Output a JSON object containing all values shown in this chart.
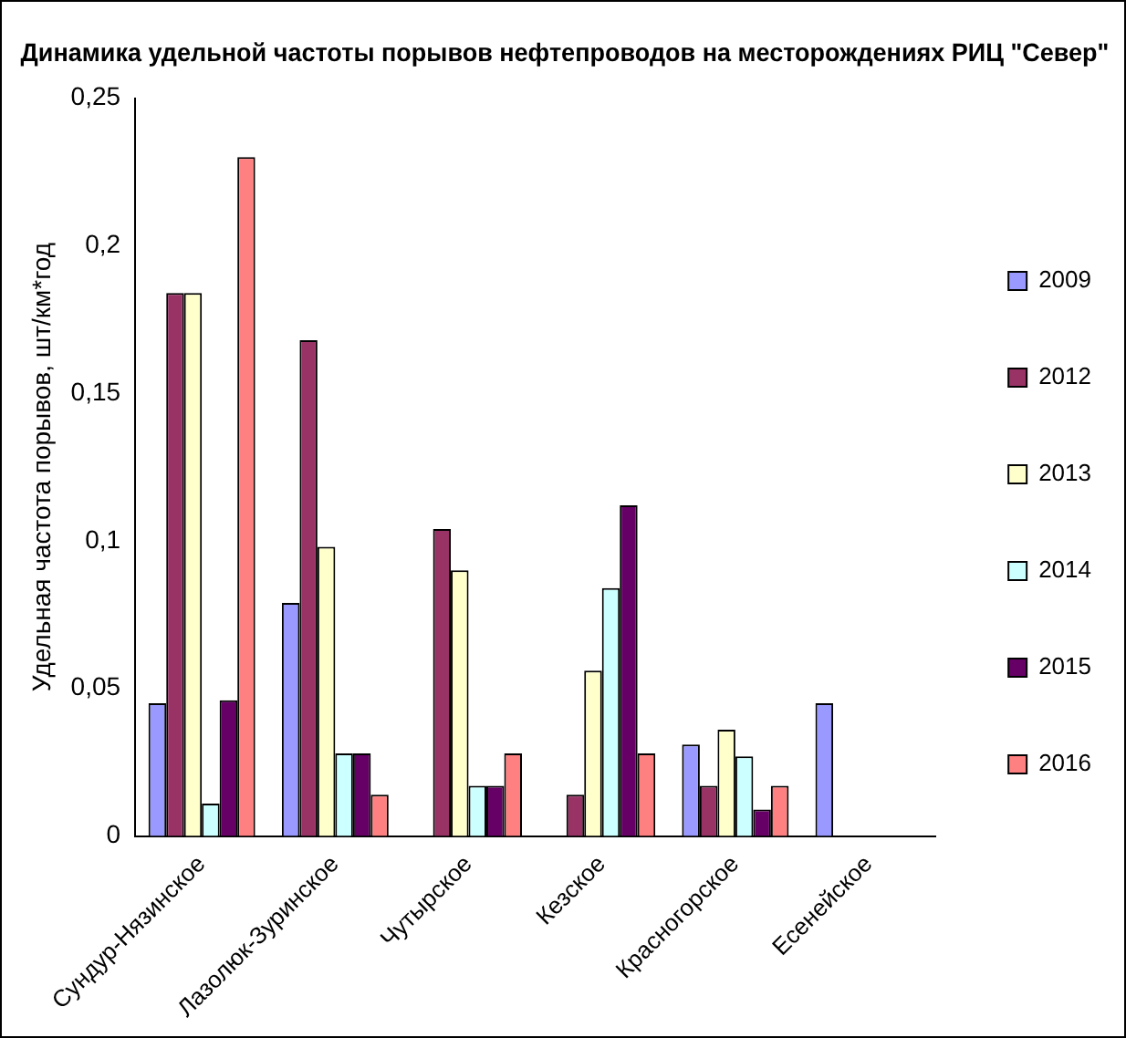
{
  "chart_data": {
    "type": "bar",
    "title": "Динамика удельной частоты порывов нефтепроводов на месторождениях РИЦ \"Север\"",
    "ylabel": "Удельная частота порывов, шт/км*год",
    "categories": [
      "Сундур-Нязинское",
      "Лазолюк-Зуринское",
      "Чутырское",
      "Кезское",
      "Красногорское",
      "Есенейское"
    ],
    "series": [
      {
        "name": "2009",
        "color": "#9999ff",
        "values": [
          0.045,
          0.079,
          null,
          null,
          0.031,
          0.045
        ]
      },
      {
        "name": "2012",
        "color": "#993366",
        "values": [
          0.184,
          0.168,
          0.104,
          0.014,
          0.017,
          null
        ]
      },
      {
        "name": "2013",
        "color": "#ffffcc",
        "values": [
          0.184,
          0.098,
          0.09,
          0.056,
          0.036,
          null
        ]
      },
      {
        "name": "2014",
        "color": "#ccffff",
        "values": [
          0.011,
          0.028,
          0.017,
          0.084,
          0.027,
          null
        ]
      },
      {
        "name": "2015",
        "color": "#660066",
        "values": [
          0.046,
          0.028,
          0.017,
          0.112,
          0.009,
          null
        ]
      },
      {
        "name": "2016",
        "color": "#ff8080",
        "values": [
          0.23,
          0.014,
          0.028,
          0.028,
          0.017,
          null
        ]
      }
    ],
    "ylim": [
      0,
      0.25
    ],
    "yticks": [
      0,
      {
        "value": 0.05,
        "label": "0,05"
      },
      {
        "value": 0.1,
        "label": "0,1"
      },
      {
        "value": 0.15,
        "label": "0,15"
      },
      {
        "value": 0.2,
        "label": "0,2"
      },
      {
        "value": 0.25,
        "label": "0,25"
      }
    ],
    "grid": false,
    "legend": "right"
  }
}
